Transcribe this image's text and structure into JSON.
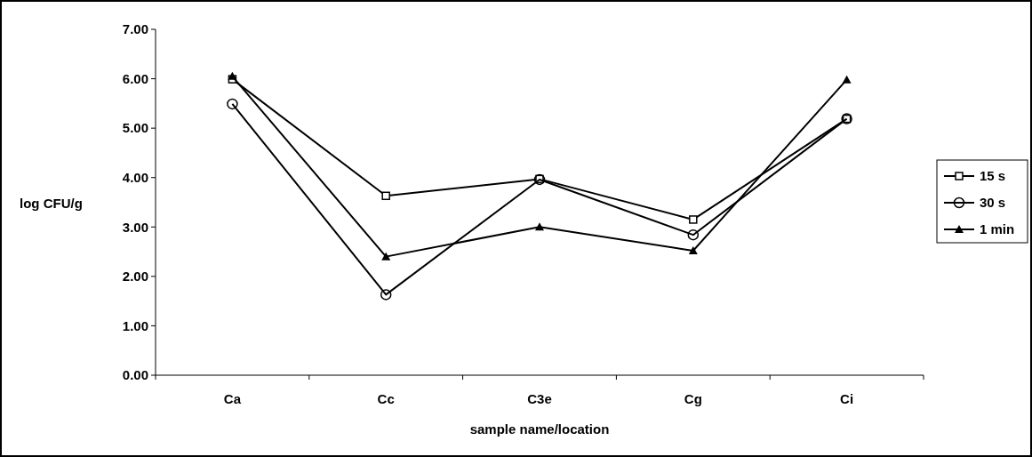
{
  "chart_data": {
    "type": "line",
    "xlabel": "sample name/location",
    "ylabel": "log CFU/g",
    "categories": [
      "Ca",
      "Cc",
      "C3e",
      "Cg",
      "Ci"
    ],
    "series": [
      {
        "name": "15 s",
        "color": "#000000",
        "marker": "square",
        "values": [
          5.99,
          3.63,
          3.97,
          3.15,
          5.19
        ]
      },
      {
        "name": "30 s",
        "color": "#000000",
        "marker": "circle",
        "values": [
          5.49,
          1.63,
          3.96,
          2.84,
          5.19
        ]
      },
      {
        "name": "1 min",
        "color": "#000000",
        "marker": "triangle",
        "values": [
          6.05,
          2.4,
          3.0,
          2.52,
          5.98
        ]
      }
    ],
    "ylim": [
      0,
      7
    ],
    "yticks": [
      {
        "value": 0,
        "label": "0.00"
      },
      {
        "value": 1,
        "label": "1.00"
      },
      {
        "value": 2,
        "label": "2.00"
      },
      {
        "value": 3,
        "label": "3.00"
      },
      {
        "value": 4,
        "label": "4.00"
      },
      {
        "value": 5,
        "label": "5.00"
      },
      {
        "value": 6,
        "label": "6.00"
      },
      {
        "value": 7,
        "label": "7.00"
      }
    ],
    "grid": false,
    "legend": "right"
  }
}
